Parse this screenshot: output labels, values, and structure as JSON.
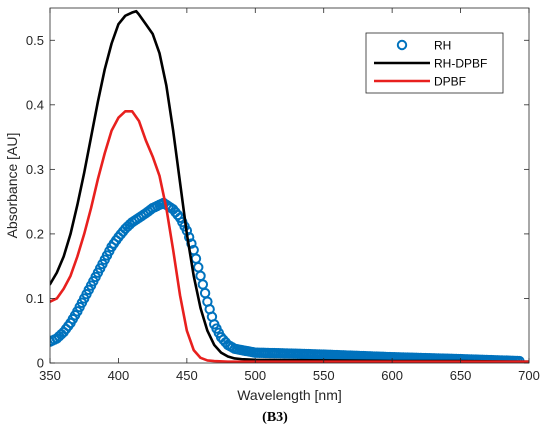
{
  "caption": "(B3)",
  "chart_data": {
    "type": "line",
    "xlabel": "Wavelength [nm]",
    "ylabel": "Absorbance [AU]",
    "xlim": [
      350,
      700
    ],
    "ylim": [
      0,
      0.55
    ],
    "xticks": [
      350,
      400,
      450,
      500,
      550,
      600,
      650,
      700
    ],
    "yticks": [
      0,
      0.1,
      0.2,
      0.3,
      0.4,
      0.5
    ],
    "grid": false,
    "legend_position": "top-right",
    "series": [
      {
        "name": "RH",
        "style": "markers",
        "color": "#0072bd",
        "x": [
          350,
          355,
          360,
          365,
          370,
          375,
          380,
          385,
          390,
          395,
          400,
          405,
          410,
          415,
          420,
          425,
          430,
          433,
          435,
          440,
          445,
          450,
          455,
          460,
          465,
          470,
          475,
          480,
          485,
          490,
          495,
          500,
          520,
          550,
          600,
          650,
          693
        ],
        "y": [
          0.033,
          0.038,
          0.048,
          0.062,
          0.08,
          0.1,
          0.12,
          0.14,
          0.16,
          0.18,
          0.195,
          0.208,
          0.218,
          0.225,
          0.232,
          0.24,
          0.245,
          0.248,
          0.245,
          0.238,
          0.225,
          0.205,
          0.175,
          0.135,
          0.095,
          0.06,
          0.04,
          0.028,
          0.022,
          0.02,
          0.018,
          0.016,
          0.015,
          0.013,
          0.009,
          0.006,
          0.003
        ]
      },
      {
        "name": "RH-DPBF",
        "style": "line",
        "color": "#000000",
        "x": [
          350,
          355,
          360,
          365,
          370,
          375,
          380,
          385,
          390,
          395,
          400,
          405,
          410,
          413,
          415,
          420,
          425,
          430,
          435,
          440,
          445,
          450,
          455,
          460,
          465,
          470,
          475,
          480,
          485,
          490,
          500,
          550,
          600,
          650,
          700
        ],
        "y": [
          0.122,
          0.14,
          0.165,
          0.2,
          0.245,
          0.295,
          0.35,
          0.405,
          0.455,
          0.495,
          0.525,
          0.538,
          0.543,
          0.545,
          0.54,
          0.525,
          0.51,
          0.48,
          0.43,
          0.36,
          0.28,
          0.2,
          0.135,
          0.085,
          0.05,
          0.028,
          0.016,
          0.01,
          0.007,
          0.006,
          0.005,
          0.004,
          0.003,
          0.003,
          0.002
        ]
      },
      {
        "name": "DPBF",
        "style": "line",
        "color": "#e8201e",
        "x": [
          350,
          355,
          360,
          365,
          370,
          375,
          380,
          385,
          390,
          395,
          400,
          405,
          410,
          415,
          420,
          425,
          430,
          435,
          440,
          445,
          450,
          455,
          460,
          465,
          470,
          480,
          500,
          550,
          600,
          650,
          700
        ],
        "y": [
          0.095,
          0.1,
          0.115,
          0.135,
          0.165,
          0.2,
          0.24,
          0.285,
          0.325,
          0.36,
          0.38,
          0.39,
          0.39,
          0.375,
          0.345,
          0.32,
          0.29,
          0.24,
          0.175,
          0.105,
          0.05,
          0.02,
          0.008,
          0.004,
          0.003,
          0.002,
          0.002,
          0.002,
          0.002,
          0.002,
          0.002
        ]
      }
    ]
  }
}
